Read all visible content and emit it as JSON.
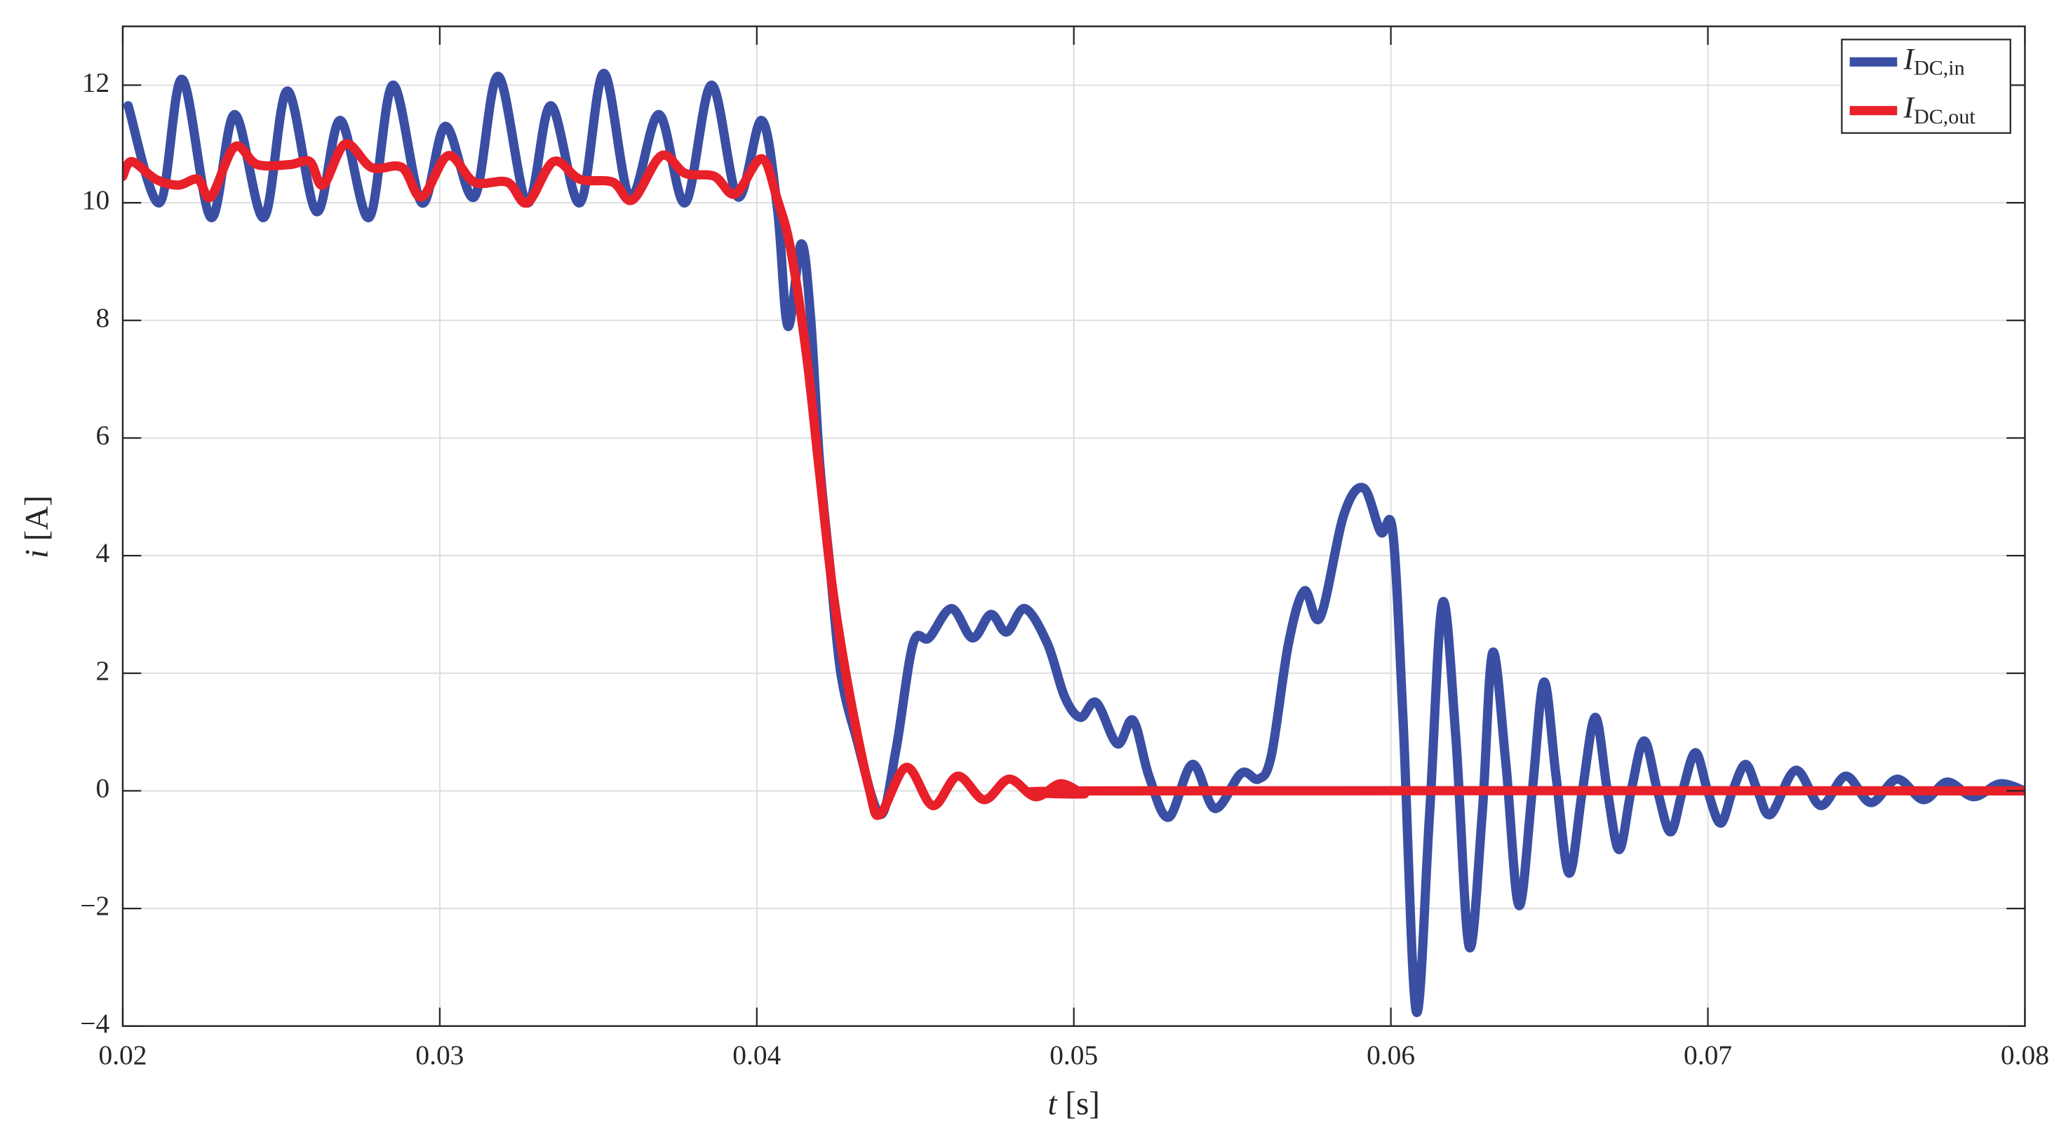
{
  "chart_data": {
    "type": "line",
    "xlabel": "t [s]",
    "ylabel": "i [A]",
    "xlim": [
      0.02,
      0.08
    ],
    "xticks": [
      0.02,
      0.03,
      0.04,
      0.05,
      0.06,
      0.07,
      0.08
    ],
    "ylim": [
      -4,
      13
    ],
    "yticks": [
      {
        "value": -4,
        "label": "−4"
      },
      {
        "value": -2,
        "label": "−2"
      },
      0,
      2,
      4,
      6,
      8,
      10,
      12
    ],
    "grid": true,
    "legend": "upper right",
    "series": [
      {
        "name": "IDC,in",
        "color": "#3a4fa3",
        "x": [
          0.02017,
          0.02116,
          0.02187,
          0.02278,
          0.02353,
          0.02445,
          0.02519,
          0.02611,
          0.02686,
          0.02777,
          0.02852,
          0.02943,
          0.03018,
          0.03109,
          0.03184,
          0.03276,
          0.0335,
          0.03442,
          0.03517,
          0.036,
          0.03691,
          0.03774,
          0.03857,
          0.0394,
          0.04015,
          0.04065,
          0.04098,
          0.0414,
          0.04169,
          0.04198,
          0.04231,
          0.04265,
          0.04314,
          0.04389,
          0.04439,
          0.04493,
          0.04543,
          0.04614,
          0.0468,
          0.04738,
          0.04788,
          0.04846,
          0.04917,
          0.04971,
          0.05021,
          0.05071,
          0.05137,
          0.05187,
          0.05237,
          0.05299,
          0.05374,
          0.05445,
          0.05528,
          0.05582,
          0.05623,
          0.05677,
          0.05727,
          0.05777,
          0.05852,
          0.05914,
          0.05968,
          0.06006,
          0.06039,
          0.0608,
          0.06122,
          0.06163,
          0.06205,
          0.06247,
          0.06288,
          0.06321,
          0.06363,
          0.06404,
          0.06446,
          0.06483,
          0.06521,
          0.06562,
          0.06604,
          0.06645,
          0.06683,
          0.0672,
          0.06758,
          0.06799,
          0.06841,
          0.06882,
          0.0692,
          0.06961,
          0.06999,
          0.0704,
          0.07078,
          0.07119,
          0.07157,
          0.07198,
          0.07277,
          0.07356,
          0.07435,
          0.07514,
          0.07597,
          0.0768,
          0.07755,
          0.07838,
          0.07921,
          0.08
        ],
        "values": [
          11.65,
          10.0,
          12.1,
          9.75,
          11.5,
          9.75,
          11.9,
          9.85,
          11.4,
          9.75,
          12.0,
          10.0,
          11.3,
          10.1,
          12.15,
          10.0,
          11.65,
          10.0,
          12.2,
          10.1,
          11.5,
          10.0,
          12.0,
          10.1,
          11.4,
          9.9,
          7.9,
          9.3,
          8.1,
          5.6,
          3.8,
          2.0,
          0.9,
          -0.4,
          0.7,
          2.5,
          2.6,
          3.1,
          2.6,
          3.0,
          2.7,
          3.1,
          2.5,
          1.6,
          1.25,
          1.5,
          0.8,
          1.2,
          0.25,
          -0.45,
          0.45,
          -0.3,
          0.3,
          0.2,
          0.6,
          2.5,
          3.4,
          2.95,
          4.7,
          5.15,
          4.4,
          4.4,
          1.15,
          -3.75,
          -0.4,
          3.2,
          0.9,
          -2.65,
          -0.4,
          2.35,
          0.45,
          -1.95,
          0,
          1.85,
          0.25,
          -1.4,
          0,
          1.25,
          0,
          -1.0,
          0,
          0.85,
          0,
          -0.7,
          0,
          0.65,
          0,
          -0.55,
          0,
          0.45,
          0,
          -0.4,
          0.35,
          -0.25,
          0.25,
          -0.2,
          0.2,
          -0.15,
          0.15,
          -0.1,
          0.12,
          0
        ]
      },
      {
        "name": "IDC,out",
        "color": "#e8202a",
        "x": [
          0.02,
          0.02029,
          0.02104,
          0.02175,
          0.02237,
          0.02278,
          0.02353,
          0.02424,
          0.02528,
          0.0259,
          0.02632,
          0.02702,
          0.02785,
          0.02881,
          0.02943,
          0.03026,
          0.03109,
          0.03213,
          0.03276,
          0.03359,
          0.03442,
          0.03546,
          0.03608,
          0.03699,
          0.03774,
          0.03866,
          0.03932,
          0.04015,
          0.04065,
          0.04107,
          0.04157,
          0.04198,
          0.0424,
          0.04294,
          0.04356,
          0.04389,
          0.04472,
          0.04555,
          0.04634,
          0.04717,
          0.04796,
          0.04879,
          0.04958,
          0.05033,
          0.05083,
          0.08
        ],
        "values": [
          10.45,
          10.7,
          10.4,
          10.3,
          10.4,
          10.1,
          10.95,
          10.65,
          10.65,
          10.7,
          10.3,
          11.0,
          10.6,
          10.6,
          10.1,
          10.8,
          10.35,
          10.35,
          10.0,
          10.7,
          10.4,
          10.35,
          10.05,
          10.8,
          10.5,
          10.45,
          10.15,
          10.75,
          10.05,
          9.2,
          7.4,
          5.4,
          3.4,
          1.6,
          0,
          -0.4,
          0.4,
          -0.25,
          0.25,
          -0.15,
          0.2,
          -0.1,
          0.12,
          -0.05,
          0,
          0
        ]
      }
    ]
  }
}
